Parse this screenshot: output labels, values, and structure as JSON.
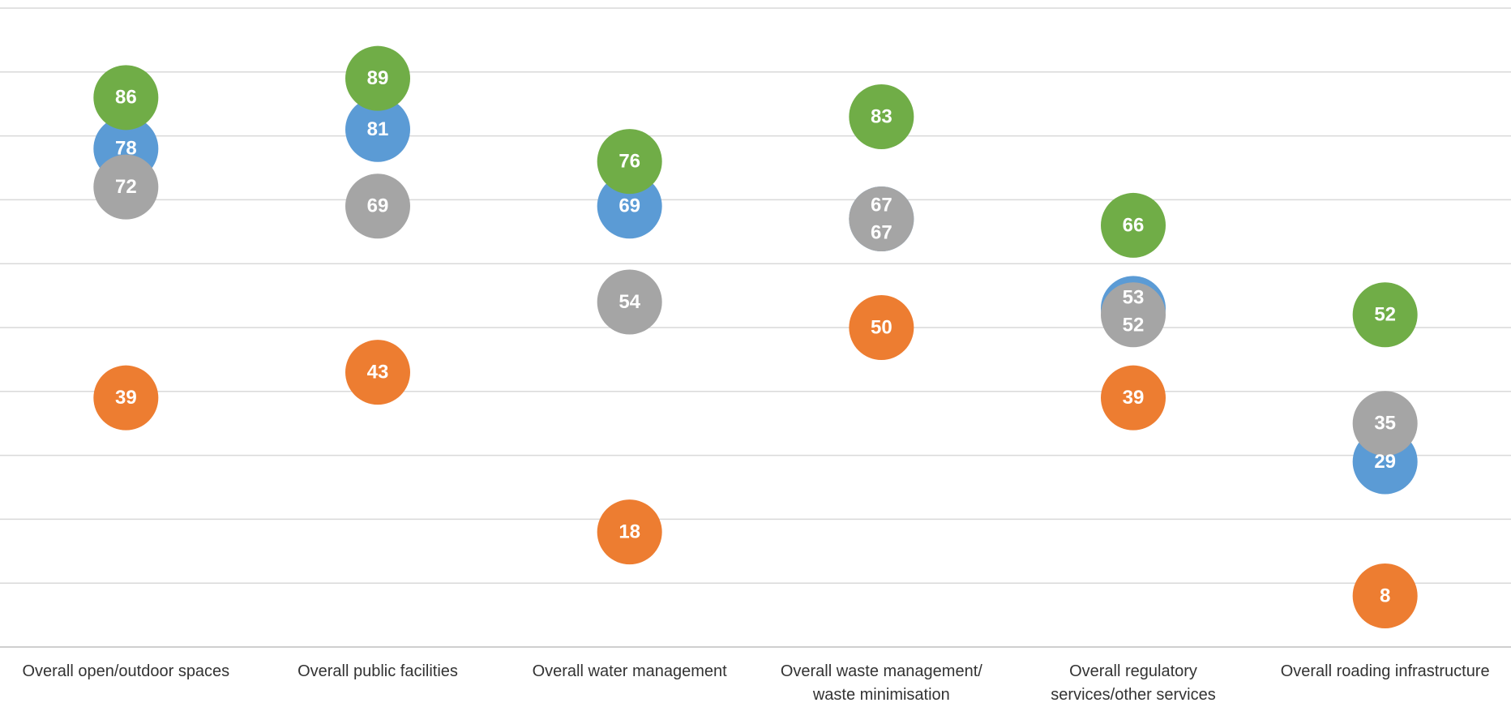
{
  "chart_data": {
    "type": "dot",
    "categories": [
      "Overall open/outdoor spaces",
      "Overall public facilities",
      "Overall water management",
      "Overall waste management/\nwaste minimisation",
      "Overall regulatory\nservices/other services",
      "Overall roading infrastructure"
    ],
    "series": [
      {
        "color": "#5b9bd5",
        "values": [
          78,
          81,
          69,
          67,
          53,
          29
        ]
      },
      {
        "color": "#a5a5a5",
        "values": [
          72,
          69,
          54,
          67,
          52,
          35
        ]
      },
      {
        "color": "#70ad47",
        "values": [
          86,
          89,
          76,
          83,
          66,
          52
        ]
      },
      {
        "color": "#ed7d31",
        "values": [
          39,
          43,
          18,
          50,
          39,
          8
        ]
      }
    ],
    "ylim": [
      0,
      100
    ],
    "yticks": [
      0,
      10,
      20,
      30,
      40,
      50,
      60,
      70,
      80,
      90,
      100
    ],
    "grid": true
  }
}
